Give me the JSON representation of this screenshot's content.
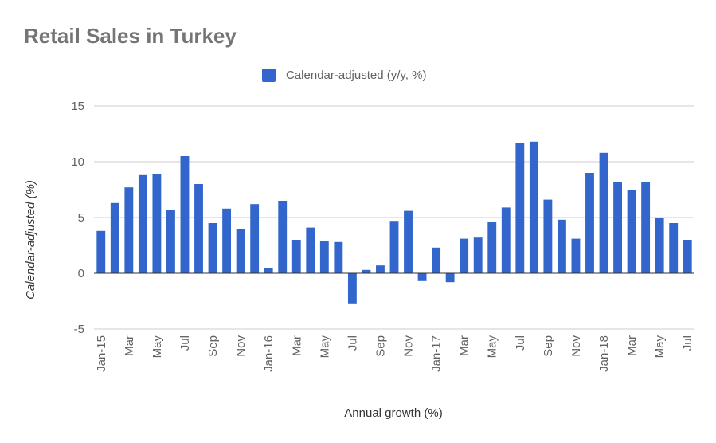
{
  "chart_data": {
    "type": "bar",
    "title": "Retail Sales in Turkey",
    "xlabel": "Annual growth (%)",
    "ylabel": "Calendar-adjusted (%)",
    "ylim": [
      -5,
      15
    ],
    "yticks": [
      -5,
      0,
      5,
      10,
      15
    ],
    "grid": true,
    "legend_position": "top",
    "colors": {
      "bar": "#3366cc",
      "grid": "#cccccc",
      "zero_line": "#333333"
    },
    "categories": [
      "Jan-15",
      "Feb-15",
      "Mar-15",
      "Apr-15",
      "May-15",
      "Jun-15",
      "Jul-15",
      "Aug-15",
      "Sep-15",
      "Oct-15",
      "Nov-15",
      "Dec-15",
      "Jan-16",
      "Feb-16",
      "Mar-16",
      "Apr-16",
      "May-16",
      "Jun-16",
      "Jul-16",
      "Aug-16",
      "Sep-16",
      "Oct-16",
      "Nov-16",
      "Dec-16",
      "Jan-17",
      "Feb-17",
      "Mar-17",
      "Apr-17",
      "May-17",
      "Jun-17",
      "Jul-17",
      "Aug-17",
      "Sep-17",
      "Oct-17",
      "Nov-17",
      "Dec-17",
      "Jan-18",
      "Feb-18",
      "Mar-18",
      "Apr-18",
      "May-18",
      "Jun-18",
      "Jul-18"
    ],
    "tick_labels": [
      "Jan-15",
      "",
      "Mar",
      "",
      "May",
      "",
      "Jul",
      "",
      "Sep",
      "",
      "Nov",
      "",
      "Jan-16",
      "",
      "Mar",
      "",
      "May",
      "",
      "Jul",
      "",
      "Sep",
      "",
      "Nov",
      "",
      "Jan-17",
      "",
      "Mar",
      "",
      "May",
      "",
      "Jul",
      "",
      "Sep",
      "",
      "Nov",
      "",
      "Jan-18",
      "",
      "Mar",
      "",
      "May",
      "",
      "Jul"
    ],
    "series": [
      {
        "name": "Calendar-adjusted (y/y, %)",
        "values": [
          3.8,
          6.3,
          7.7,
          8.8,
          8.9,
          5.7,
          10.5,
          8.0,
          4.5,
          5.8,
          4.0,
          6.2,
          0.5,
          6.5,
          3.0,
          4.1,
          2.9,
          2.8,
          -2.7,
          0.3,
          0.7,
          4.7,
          5.6,
          -0.7,
          2.3,
          -0.8,
          3.1,
          3.2,
          4.6,
          5.9,
          11.7,
          11.8,
          6.6,
          4.8,
          3.1,
          9.0,
          10.8,
          8.2,
          7.5,
          8.2,
          5.0,
          4.5,
          3.0
        ]
      }
    ]
  }
}
